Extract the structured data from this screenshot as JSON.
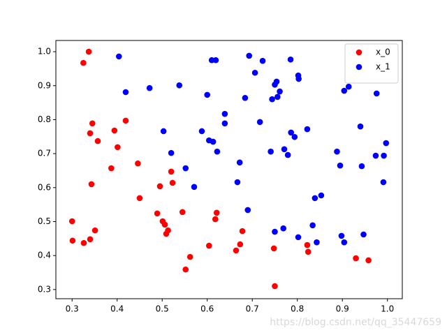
{
  "chart_data": {
    "type": "scatter",
    "xlim": [
      0.264,
      1.033
    ],
    "ylim": [
      0.273,
      1.033
    ],
    "xticks": [
      0.3,
      0.4,
      0.5,
      0.6,
      0.7,
      0.8,
      0.9,
      {
        "value": 1,
        "label": "1.0"
      }
    ],
    "yticks": [
      0.3,
      0.4,
      0.5,
      0.6,
      0.7,
      0.8,
      0.9,
      {
        "value": 1,
        "label": "1.0"
      }
    ],
    "legend": "upper right",
    "watermark": "https://blog.csdn.net/qq_35447659",
    "series": [
      {
        "name": "x_0",
        "color": "#ff0000",
        "x": [
          0.337,
          0.325,
          0.345,
          0.34,
          0.357,
          0.394,
          0.419,
          0.401,
          0.387,
          0.446,
          0.343,
          0.45,
          0.52,
          0.523,
          0.495,
          0.3,
          0.301,
          0.326,
          0.34,
          0.351,
          0.489,
          0.501,
          0.506,
          0.513,
          0.509,
          0.545,
          0.621,
          0.618,
          0.604,
          0.562,
          0.552,
          0.678,
          0.673,
          0.664,
          0.748,
          0.75,
          0.822,
          0.824,
          0.93,
          0.958
        ],
        "values": [
          1.0,
          0.967,
          0.789,
          0.76,
          0.737,
          0.768,
          0.797,
          0.719,
          0.657,
          0.671,
          0.61,
          0.569,
          0.647,
          0.614,
          0.604,
          0.501,
          0.444,
          0.437,
          0.448,
          0.474,
          0.524,
          0.501,
          0.491,
          0.474,
          0.464,
          0.528,
          0.526,
          0.507,
          0.429,
          0.396,
          0.359,
          0.472,
          0.433,
          0.415,
          0.421,
          0.31,
          0.431,
          0.411,
          0.392,
          0.386
        ]
      },
      {
        "name": "x_1",
        "color": "#0000ff",
        "x": [
          0.404,
          0.419,
          0.472,
          0.538,
          0.503,
          0.52,
          0.552,
          0.571,
          0.588,
          0.6,
          0.61,
          0.619,
          0.604,
          0.613,
          0.622,
          0.639,
          0.639,
          0.684,
          0.693,
          0.723,
          0.706,
          0.717,
          0.672,
          0.667,
          0.69,
          0.785,
          0.802,
          0.803,
          0.754,
          0.75,
          0.761,
          0.756,
          0.744,
          0.741,
          0.771,
          0.779,
          0.786,
          0.794,
          0.822,
          0.839,
          0.853,
          0.834,
          0.843,
          0.802,
          0.769,
          0.75,
          0.904,
          0.914,
          0.976,
          0.94,
          0.888,
          0.895,
          0.943,
          0.974,
          0.992,
          0.997,
          0.991,
          0.898,
          0.904,
          0.947
        ],
        "values": [
          0.986,
          0.881,
          0.893,
          0.901,
          0.766,
          0.702,
          0.657,
          0.602,
          0.766,
          0.873,
          0.975,
          0.975,
          0.739,
          0.735,
          0.706,
          0.817,
          0.789,
          0.864,
          0.988,
          0.973,
          0.938,
          0.793,
          0.674,
          0.616,
          0.534,
          0.977,
          0.93,
          0.92,
          0.912,
          0.903,
          0.883,
          0.867,
          0.86,
          0.706,
          0.713,
          0.696,
          0.762,
          0.749,
          0.772,
          0.569,
          0.577,
          0.489,
          0.439,
          0.454,
          0.48,
          0.47,
          0.885,
          0.897,
          0.877,
          0.78,
          0.706,
          0.665,
          0.663,
          0.694,
          0.694,
          0.731,
          0.616,
          0.458,
          0.439,
          0.462
        ]
      }
    ]
  }
}
